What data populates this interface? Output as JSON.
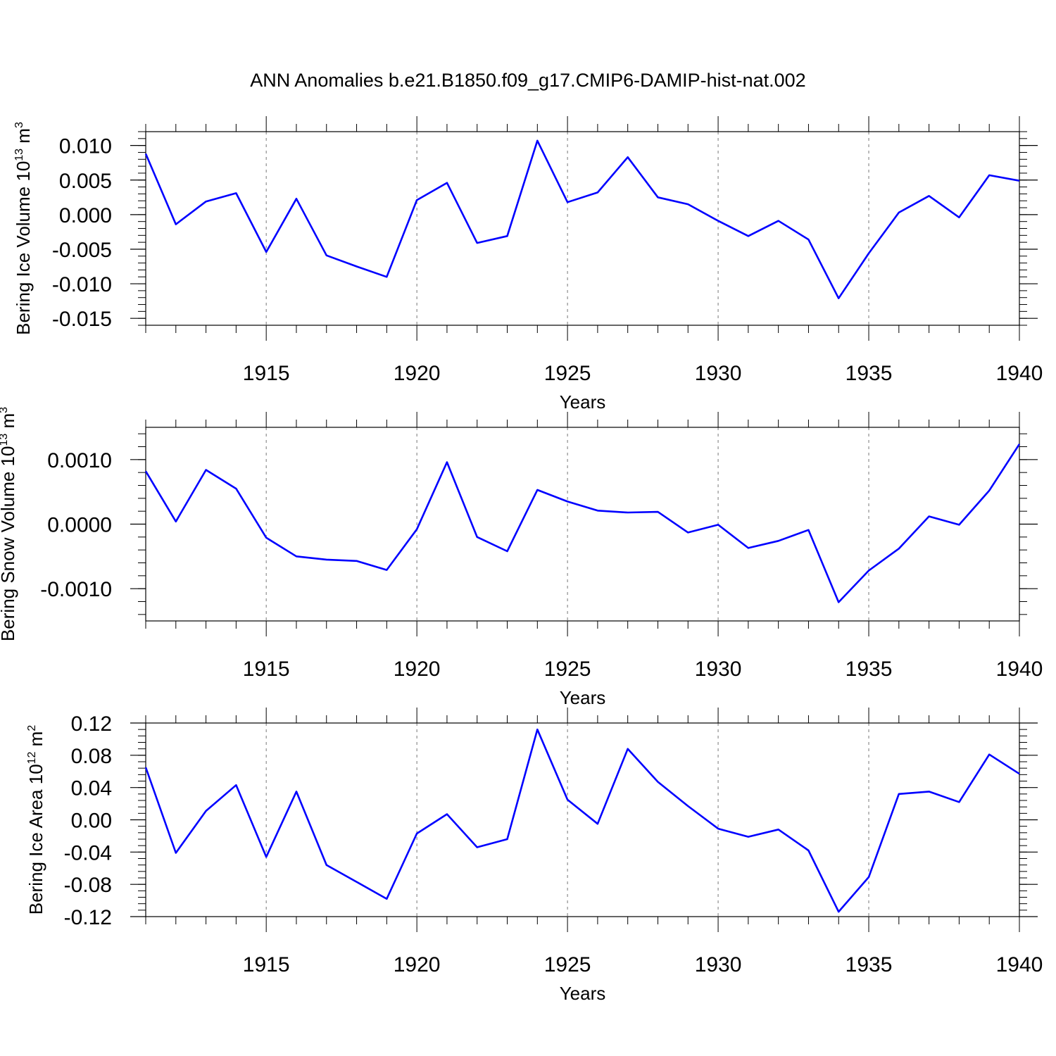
{
  "figure_title": "ANN Anomalies b.e21.B1850.f09_g17.CMIP6-DAMIP-hist-nat.002",
  "colors": {
    "line": "#0000ff",
    "axis": "#000000",
    "grid": "#777777"
  },
  "chart_data": [
    {
      "type": "line",
      "ylabel_main": "Bering Ice Volume 10",
      "ylabel_exp": "13",
      "ylabel_unit": " m",
      "ylabel_unit_exp": "3",
      "xlabel": "Years",
      "xlim": [
        1911,
        1940
      ],
      "ylim": [
        -0.016,
        0.012
      ],
      "ytick_values": [
        0.01,
        0.005,
        0.0,
        -0.005,
        -0.01,
        -0.015
      ],
      "ytick_labels": [
        "0.010",
        "0.005",
        "0.000",
        "-0.005",
        "-0.010",
        "-0.015"
      ],
      "xtick_values": [
        1915,
        1920,
        1925,
        1930,
        1935,
        1940
      ],
      "xtick_labels": [
        "1915",
        "1920",
        "1925",
        "1930",
        "1935",
        "1940"
      ],
      "grid_x": true,
      "x": [
        1911,
        1912,
        1913,
        1914,
        1915,
        1916,
        1917,
        1918,
        1919,
        1920,
        1921,
        1922,
        1923,
        1924,
        1925,
        1926,
        1927,
        1928,
        1929,
        1930,
        1931,
        1932,
        1933,
        1934,
        1935,
        1936,
        1937,
        1938,
        1939,
        1940
      ],
      "values": [
        0.0088,
        -0.0014,
        0.0019,
        0.0031,
        -0.0054,
        0.0023,
        -0.0059,
        -0.0075,
        -0.009,
        0.0021,
        0.0046,
        -0.0041,
        -0.0031,
        0.0107,
        0.0018,
        0.0032,
        0.0083,
        0.0025,
        0.0015,
        -0.0009,
        -0.0031,
        -0.0009,
        -0.0036,
        -0.0121,
        -0.0056,
        0.0003,
        0.0027,
        -0.0004,
        0.0057,
        0.0049
      ]
    },
    {
      "type": "line",
      "ylabel_main": "Bering Snow Volume 10",
      "ylabel_exp": "13",
      "ylabel_unit": " m",
      "ylabel_unit_exp": "3",
      "xlabel": "Years",
      "xlim": [
        1911,
        1940
      ],
      "ylim": [
        -0.0015,
        0.0015
      ],
      "ytick_values": [
        0.001,
        0.0,
        -0.001
      ],
      "ytick_labels": [
        "0.0010",
        "0.0000",
        "-0.0010"
      ],
      "xtick_values": [
        1915,
        1920,
        1925,
        1930,
        1935,
        1940
      ],
      "xtick_labels": [
        "1915",
        "1920",
        "1925",
        "1930",
        "1935",
        "1940"
      ],
      "grid_x": true,
      "x": [
        1911,
        1912,
        1913,
        1914,
        1915,
        1916,
        1917,
        1918,
        1919,
        1920,
        1921,
        1922,
        1923,
        1924,
        1925,
        1926,
        1927,
        1928,
        1929,
        1930,
        1931,
        1932,
        1933,
        1934,
        1935,
        1936,
        1937,
        1938,
        1939,
        1940
      ],
      "values": [
        0.00082,
        4e-05,
        0.00084,
        0.00055,
        -0.00021,
        -0.0005,
        -0.00055,
        -0.00057,
        -0.00071,
        -8e-05,
        0.00096,
        -0.0002,
        -0.00042,
        0.00053,
        0.00035,
        0.00021,
        0.00018,
        0.00019,
        -0.00013,
        -1e-05,
        -0.00037,
        -0.00026,
        -9e-05,
        -0.00121,
        -0.00072,
        -0.00038,
        0.00012,
        -1e-05,
        0.00052,
        0.00124
      ]
    },
    {
      "type": "line",
      "ylabel_main": "Bering Ice Area 10",
      "ylabel_exp": "12",
      "ylabel_unit": " m",
      "ylabel_unit_exp": "2",
      "xlabel": "Years",
      "xlim": [
        1911,
        1940
      ],
      "ylim": [
        -0.12,
        0.12
      ],
      "ytick_values": [
        0.12,
        0.08,
        0.04,
        0.0,
        -0.04,
        -0.08,
        -0.12
      ],
      "ytick_labels": [
        "0.12",
        "0.08",
        "0.04",
        "0.00",
        "-0.04",
        "-0.08",
        "-0.12"
      ],
      "xtick_values": [
        1915,
        1920,
        1925,
        1930,
        1935,
        1940
      ],
      "xtick_labels": [
        "1915",
        "1920",
        "1925",
        "1930",
        "1935",
        "1940"
      ],
      "grid_x": true,
      "x": [
        1911,
        1912,
        1913,
        1914,
        1915,
        1916,
        1917,
        1918,
        1919,
        1920,
        1921,
        1922,
        1923,
        1924,
        1925,
        1926,
        1927,
        1928,
        1929,
        1930,
        1931,
        1932,
        1933,
        1934,
        1935,
        1936,
        1937,
        1938,
        1939,
        1940
      ],
      "values": [
        0.065,
        -0.041,
        0.011,
        0.043,
        -0.046,
        0.035,
        -0.056,
        -0.077,
        -0.098,
        -0.017,
        0.007,
        -0.034,
        -0.024,
        0.112,
        0.025,
        -0.005,
        0.088,
        0.047,
        0.017,
        -0.011,
        -0.021,
        -0.012,
        -0.038,
        -0.114,
        -0.071,
        0.032,
        0.035,
        0.022,
        0.081,
        0.057
      ]
    }
  ]
}
